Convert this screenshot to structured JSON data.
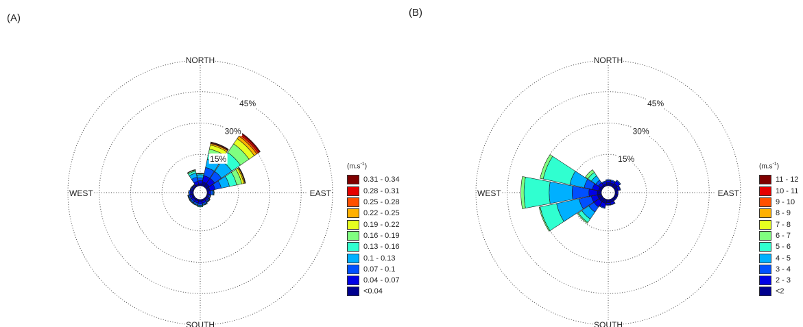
{
  "panels": {
    "a_label": "(A)",
    "b_label": "(B)"
  },
  "chart_data": [
    {
      "type": "windrose",
      "panel": "(A)",
      "directions_deg": [
        0,
        22.5,
        45,
        67.5,
        90,
        112.5,
        135,
        157.5,
        180,
        202.5,
        225,
        247.5,
        270,
        292.5,
        315,
        337.5
      ],
      "compass_labels": {
        "north": "NORTH",
        "south": "SOUTH",
        "east": "EAST",
        "west": "WEST"
      },
      "rings_percent": [
        15,
        30,
        45,
        60
      ],
      "ring_labels": [
        "15%",
        "30%",
        "45%"
      ],
      "legend_title": "(m.s-1)",
      "legend_title_main": "(m.s",
      "legend_title_sup": "-1",
      "legend_title_end": ")",
      "bins": [
        {
          "label": "<0.04",
          "color": "#00008f"
        },
        {
          "label": "0.04 - 0.07",
          "color": "#0000e6"
        },
        {
          "label": "0.07 - 0.1",
          "color": "#0050ff"
        },
        {
          "label": "0.1 - 0.13",
          "color": "#00b0ff"
        },
        {
          "label": "0.13 - 0.16",
          "color": "#30ffd0"
        },
        {
          "label": "0.16 - 0.19",
          "color": "#80ff80"
        },
        {
          "label": "0.19 - 0.22",
          "color": "#e6ff20"
        },
        {
          "label": "0.22 - 0.25",
          "color": "#ffb000"
        },
        {
          "label": "0.25 - 0.28",
          "color": "#ff5000"
        },
        {
          "label": "0.28 - 0.31",
          "color": "#e60000"
        },
        {
          "label": "0.31 - 0.34",
          "color": "#800000"
        }
      ],
      "stacked_percent": [
        [
          1.0,
          1.5,
          1.3,
          1.5,
          0.5,
          0.2,
          0.1,
          0,
          0,
          0,
          0
        ],
        [
          2.0,
          3.0,
          4.0,
          4.0,
          3.0,
          2.0,
          2.0,
          0.7,
          0.3,
          0.3,
          0.2
        ],
        [
          2.0,
          3.0,
          4.0,
          6.0,
          5.0,
          5.0,
          3.0,
          1.5,
          0.8,
          0.7,
          0.5
        ],
        [
          1.5,
          2.5,
          3.0,
          4.0,
          3.5,
          2.5,
          1.0,
          0.5,
          0.2,
          0.2,
          0
        ],
        [
          0.7,
          1.0,
          1.0,
          0.5,
          0.2,
          0,
          0,
          0,
          0,
          0,
          0
        ],
        [
          0.6,
          0.7,
          0.5,
          0.2,
          0,
          0,
          0,
          0,
          0,
          0,
          0
        ],
        [
          0.7,
          0.8,
          0.5,
          0.3,
          0.2,
          0,
          0,
          0,
          0,
          0,
          0
        ],
        [
          0.8,
          1.0,
          0.6,
          0.4,
          0.2,
          0,
          0,
          0,
          0,
          0,
          0
        ],
        [
          0.9,
          1.2,
          0.7,
          0.5,
          0.3,
          0,
          0,
          0,
          0,
          0,
          0
        ],
        [
          0.8,
          1.0,
          0.7,
          0.4,
          0.2,
          0,
          0,
          0,
          0,
          0,
          0
        ],
        [
          0.8,
          1.0,
          0.6,
          0.4,
          0.2,
          0,
          0,
          0,
          0,
          0,
          0
        ],
        [
          0.9,
          1.0,
          0.5,
          0.3,
          0.2,
          0,
          0,
          0,
          0,
          0,
          0
        ],
        [
          0.8,
          0.8,
          0.5,
          0.2,
          0,
          0,
          0,
          0,
          0,
          0,
          0
        ],
        [
          0.6,
          0.6,
          0.4,
          0.2,
          0,
          0,
          0,
          0,
          0,
          0,
          0
        ],
        [
          0.5,
          0.6,
          0.3,
          0.2,
          0,
          0,
          0,
          0,
          0,
          0,
          0
        ],
        [
          0.8,
          1.5,
          2.0,
          2.0,
          1.0,
          0.5,
          0.2,
          0,
          0,
          0,
          0
        ]
      ]
    },
    {
      "type": "windrose",
      "panel": "(B)",
      "directions_deg": [
        0,
        22.5,
        45,
        67.5,
        90,
        112.5,
        135,
        157.5,
        180,
        202.5,
        225,
        247.5,
        270,
        292.5,
        315,
        337.5
      ],
      "compass_labels": {
        "north": "NORTH",
        "south": "SOUTH",
        "east": "EAST",
        "west": "WEST"
      },
      "rings_percent": [
        15,
        30,
        45,
        60
      ],
      "ring_labels": [
        "15%",
        "30%",
        "45%"
      ],
      "legend_title": "(m.s-1)",
      "legend_title_main": "(m.s",
      "legend_title_sup": "-1",
      "legend_title_end": ")",
      "bins": [
        {
          "label": "<2",
          "color": "#00008f"
        },
        {
          "label": "2 - 3",
          "color": "#0000e6"
        },
        {
          "label": "3 - 4",
          "color": "#0050ff"
        },
        {
          "label": "4 - 5",
          "color": "#00b0ff"
        },
        {
          "label": "5 - 6",
          "color": "#30ffd0"
        },
        {
          "label": "6 - 7",
          "color": "#80ff80"
        },
        {
          "label": "7 - 8",
          "color": "#e6ff20"
        },
        {
          "label": "8 - 9",
          "color": "#ffb000"
        },
        {
          "label": "9 - 10",
          "color": "#ff5000"
        },
        {
          "label": "10 - 11",
          "color": "#e60000"
        },
        {
          "label": "11 - 12",
          "color": "#800000"
        }
      ],
      "stacked_percent": [
        [
          1.5,
          1.0,
          0.5,
          0,
          0,
          0,
          0,
          0,
          0,
          0,
          0
        ],
        [
          1.5,
          1.0,
          0.5,
          0,
          0,
          0,
          0,
          0,
          0,
          0,
          0
        ],
        [
          2.0,
          1.5,
          0.5,
          0,
          0,
          0,
          0,
          0,
          0,
          0,
          0
        ],
        [
          1.5,
          1.0,
          0.3,
          0,
          0,
          0,
          0,
          0,
          0,
          0,
          0
        ],
        [
          1.0,
          0.5,
          0,
          0,
          0,
          0,
          0,
          0,
          0,
          0,
          0
        ],
        [
          1.0,
          0.5,
          0,
          0,
          0,
          0,
          0,
          0,
          0,
          0,
          0
        ],
        [
          1.0,
          0.5,
          0,
          0,
          0,
          0,
          0,
          0,
          0,
          0,
          0
        ],
        [
          1.5,
          1.0,
          0.3,
          0,
          0,
          0,
          0,
          0,
          0,
          0,
          0
        ],
        [
          1.5,
          1.0,
          0.3,
          0,
          0,
          0,
          0,
          0,
          0,
          0,
          0
        ],
        [
          2.0,
          2.0,
          0.5,
          0,
          0,
          0,
          0,
          0,
          0,
          0,
          0
        ],
        [
          2.0,
          3.0,
          3.0,
          4.0,
          2.0,
          0.5,
          0,
          0,
          0,
          0,
          0
        ],
        [
          2.0,
          3.0,
          6.0,
          11.0,
          8.0,
          0.5,
          0,
          0,
          0,
          0,
          0
        ],
        [
          2.0,
          4.0,
          8.0,
          11.0,
          12.0,
          1.5,
          0,
          0,
          0,
          0,
          0
        ],
        [
          1.5,
          3.0,
          4.0,
          7.0,
          13.0,
          1.5,
          0,
          0,
          0,
          0,
          0
        ],
        [
          1.0,
          1.5,
          1.5,
          2.5,
          2.0,
          1.5,
          0,
          0,
          0,
          0,
          0
        ],
        [
          1.0,
          1.0,
          0.5,
          0,
          0,
          0,
          0,
          0,
          0,
          0,
          0
        ]
      ]
    }
  ]
}
